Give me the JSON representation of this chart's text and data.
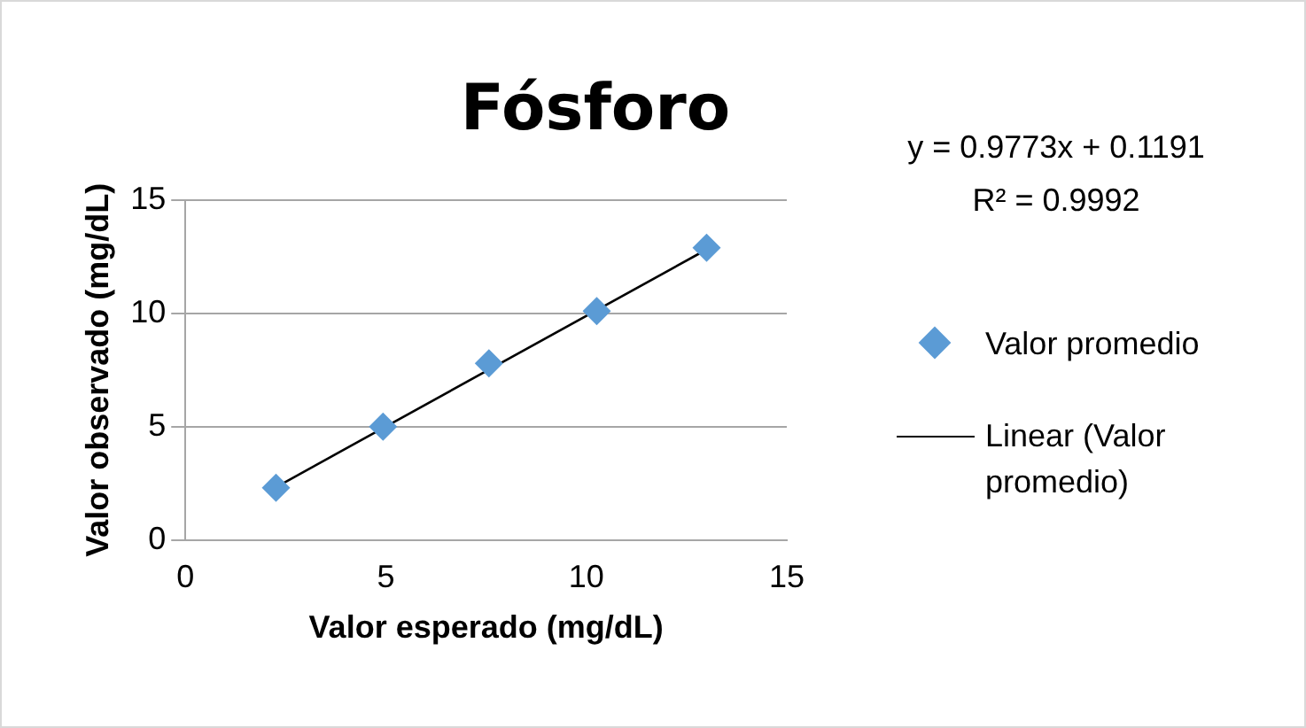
{
  "chart_data": {
    "type": "scatter",
    "title": "Fósforo",
    "xlabel": "Valor esperado (mg/dL)",
    "ylabel": "Valor observado (mg/dL)",
    "xlim": [
      0,
      15
    ],
    "xticks": [
      0,
      5,
      10,
      15
    ],
    "ylim": [
      0,
      15
    ],
    "yticks": [
      0,
      5,
      10,
      15
    ],
    "grid": "y",
    "legend": "right",
    "marker": "diamond",
    "series": [
      {
        "name": "Valor promedio",
        "color": "#5b9bd5",
        "x": [
          2.26,
          4.93,
          7.57,
          10.26,
          13.0
        ],
        "values": [
          2.3,
          5.0,
          7.8,
          10.1,
          12.9
        ]
      },
      {
        "name": "Linear (Valor promedio)",
        "type": "line",
        "color": "#000000",
        "marker": "none",
        "x": [
          2.26,
          13.0
        ],
        "values": [
          2.33,
          12.82
        ]
      }
    ],
    "annotations": [
      "y = 0.9773x + 0.1191",
      "R² = 0.9992"
    ]
  }
}
